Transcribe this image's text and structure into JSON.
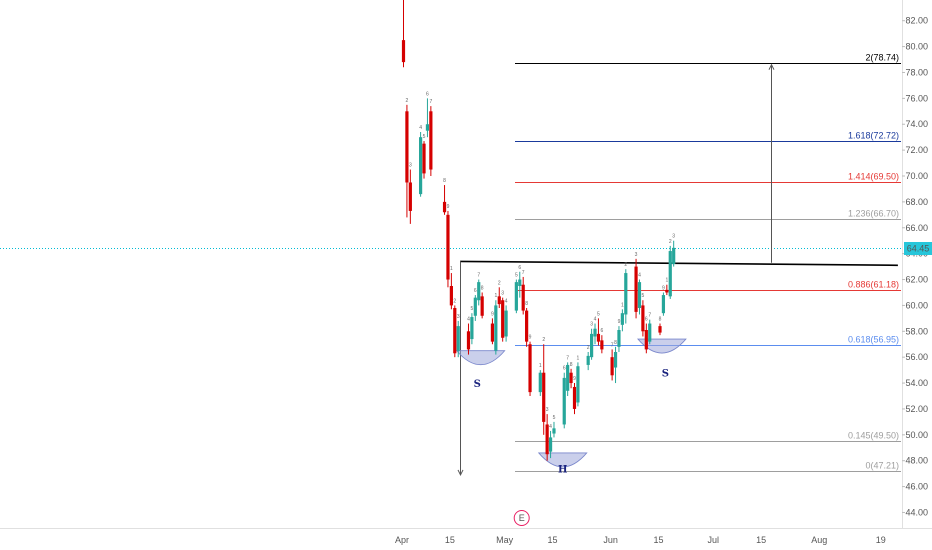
{
  "chart_data": {
    "type": "candlestick",
    "title": "",
    "ylim": [
      42.8,
      83.6
    ],
    "y_ticks": [
      "82.00",
      "80.00",
      "78.00",
      "76.00",
      "74.00",
      "72.00",
      "70.00",
      "68.00",
      "66.00",
      "64.00",
      "62.00",
      "60.00",
      "58.00",
      "56.00",
      "54.00",
      "52.00",
      "50.00",
      "48.00",
      "46.00",
      "44.00"
    ],
    "x_ticks": [
      "Apr",
      "15",
      "May",
      "15",
      "Jun",
      "15",
      "Jul",
      "15",
      "Aug",
      "19"
    ],
    "x_tick_dates": [
      "2020-04-01",
      "2020-04-15",
      "2020-05-01",
      "2020-05-15",
      "2020-06-01",
      "2020-06-15",
      "2020-07-01",
      "2020-07-15",
      "2020-08-01",
      "2020-08-19"
    ],
    "current_price": "64.45",
    "colors": {
      "up": "#26a69a",
      "down": "#d50000",
      "price_line": "#00bcd4",
      "price_badge": "#26c6da",
      "fib_blue": "#1a3a9c",
      "fib_red": "#e53935",
      "fib_gray": "#9e9e9e",
      "fib_blue_light": "#5b8def",
      "neckline": "#000000",
      "cup_fill": "#9fa8da"
    },
    "fib_levels": [
      {
        "label": "2(78.74)",
        "value": 78.74,
        "color": "#000000"
      },
      {
        "label": "1.618(72.72)",
        "value": 72.72,
        "color": "#1a3a9c"
      },
      {
        "label": "1.414(69.50)",
        "value": 69.5,
        "color": "#e53935"
      },
      {
        "label": "1.236(66.70)",
        "value": 66.7,
        "color": "#9e9e9e"
      },
      {
        "label": "0.886(61.18)",
        "value": 61.18,
        "color": "#e53935"
      },
      {
        "label": "0.618(56.95)",
        "value": 56.95,
        "color": "#5b8def"
      },
      {
        "label": "0.145(49.50)",
        "value": 49.5,
        "color": "#9e9e9e"
      },
      {
        "label": "0(47.21)",
        "value": 47.21,
        "color": "#9e9e9e"
      }
    ],
    "neckline": {
      "from": [
        "2020-04-18",
        63.4
      ],
      "to": [
        "2020-08-24",
        63.1
      ]
    },
    "arrows": [
      {
        "x": "2020-04-18",
        "from": 63.4,
        "to": 46.9
      },
      {
        "x": "2020-07-18",
        "from": 63.3,
        "to": 78.6
      }
    ],
    "pattern_labels": [
      {
        "text": "S",
        "date": "2020-04-23",
        "value": 54.0
      },
      {
        "text": "H",
        "date": "2020-05-18",
        "value": 47.4
      },
      {
        "text": "S",
        "date": "2020-06-17",
        "value": 54.8
      }
    ],
    "cups": [
      {
        "date": "2020-04-24",
        "value": 56.5
      },
      {
        "date": "2020-05-18",
        "value": 48.6
      },
      {
        "date": "2020-06-16",
        "value": 57.4
      }
    ],
    "event_marker": {
      "text": "E",
      "date": "2020-05-06"
    },
    "candles": [
      {
        "d": "2020-04-01",
        "o": 80.5,
        "h": 86,
        "l": 78.4,
        "c": 78.8
      },
      {
        "d": "2020-04-02",
        "o": 75.0,
        "h": 75.5,
        "l": 66.8,
        "c": 69.5
      },
      {
        "d": "2020-04-03",
        "o": 69.5,
        "h": 70.5,
        "l": 66.3,
        "c": 67.3
      },
      {
        "d": "2020-04-06",
        "o": 68.6,
        "h": 73.4,
        "l": 68.4,
        "c": 73.0
      },
      {
        "d": "2020-04-07",
        "o": 72.5,
        "h": 72.7,
        "l": 69.8,
        "c": 70.2
      },
      {
        "d": "2020-04-08",
        "o": 73.5,
        "h": 76.0,
        "l": 73.0,
        "c": 74.0
      },
      {
        "d": "2020-04-09",
        "o": 75.0,
        "h": 75.4,
        "l": 70.0,
        "c": 70.5
      },
      {
        "d": "2020-04-13",
        "o": 68.0,
        "h": 69.3,
        "l": 67.0,
        "c": 67.2
      },
      {
        "d": "2020-04-14",
        "o": 67.0,
        "h": 67.3,
        "l": 61.4,
        "c": 62.0
      },
      {
        "d": "2020-04-15",
        "o": 61.5,
        "h": 62.5,
        "l": 59.7,
        "c": 60.0
      },
      {
        "d": "2020-04-16",
        "o": 59.8,
        "h": 60.0,
        "l": 56.0,
        "c": 56.3
      },
      {
        "d": "2020-04-17",
        "o": 56.5,
        "h": 58.8,
        "l": 56.0,
        "c": 58.4
      },
      {
        "d": "2020-04-20",
        "o": 58.0,
        "h": 58.6,
        "l": 56.2,
        "c": 56.6
      },
      {
        "d": "2020-04-21",
        "o": 57.4,
        "h": 59.4,
        "l": 57.0,
        "c": 59.1
      },
      {
        "d": "2020-04-22",
        "o": 59.2,
        "h": 60.8,
        "l": 58.8,
        "c": 60.6
      },
      {
        "d": "2020-04-23",
        "o": 60.4,
        "h": 62.0,
        "l": 60.0,
        "c": 61.8
      },
      {
        "d": "2020-04-24",
        "o": 60.7,
        "h": 61.0,
        "l": 59.0,
        "c": 59.2
      },
      {
        "d": "2020-04-27",
        "o": 58.6,
        "h": 59.0,
        "l": 57.0,
        "c": 57.2
      },
      {
        "d": "2020-04-28",
        "o": 56.5,
        "h": 60.4,
        "l": 56.2,
        "c": 60.0
      },
      {
        "d": "2020-04-29",
        "o": 60.7,
        "h": 61.4,
        "l": 59.8,
        "c": 60.1
      },
      {
        "d": "2020-04-30",
        "o": 60.4,
        "h": 60.6,
        "l": 57.2,
        "c": 57.5
      },
      {
        "d": "2020-05-01",
        "o": 57.6,
        "h": 60.0,
        "l": 57.2,
        "c": 59.6
      },
      {
        "d": "2020-05-04",
        "o": 59.6,
        "h": 62.0,
        "l": 59.4,
        "c": 61.8
      },
      {
        "d": "2020-05-05",
        "o": 61.5,
        "h": 62.6,
        "l": 60.6,
        "c": 62.0
      },
      {
        "d": "2020-05-06",
        "o": 61.6,
        "h": 62.2,
        "l": 59.3,
        "c": 59.6
      },
      {
        "d": "2020-05-07",
        "o": 59.6,
        "h": 59.8,
        "l": 56.8,
        "c": 57.2
      },
      {
        "d": "2020-05-08",
        "o": 57.0,
        "h": 57.2,
        "l": 53.0,
        "c": 53.3
      },
      {
        "d": "2020-05-11",
        "o": 53.3,
        "h": 55.0,
        "l": 53.0,
        "c": 54.8
      },
      {
        "d": "2020-05-12",
        "o": 54.8,
        "h": 57.0,
        "l": 50.0,
        "c": 51.0
      },
      {
        "d": "2020-05-13",
        "o": 50.8,
        "h": 51.6,
        "l": 48.0,
        "c": 48.5
      },
      {
        "d": "2020-05-14",
        "o": 48.7,
        "h": 50.3,
        "l": 48.2,
        "c": 49.8
      },
      {
        "d": "2020-05-15",
        "o": 50.1,
        "h": 51.0,
        "l": 49.8,
        "c": 50.5
      },
      {
        "d": "2020-05-18",
        "o": 50.8,
        "h": 54.8,
        "l": 50.5,
        "c": 54.4
      },
      {
        "d": "2020-05-19",
        "o": 53.4,
        "h": 55.6,
        "l": 53.0,
        "c": 55.4
      },
      {
        "d": "2020-05-20",
        "o": 54.8,
        "h": 55.1,
        "l": 53.6,
        "c": 54.0
      },
      {
        "d": "2020-05-21",
        "o": 53.7,
        "h": 54.0,
        "l": 51.6,
        "c": 52.0
      },
      {
        "d": "2020-05-22",
        "o": 52.5,
        "h": 55.6,
        "l": 52.2,
        "c": 55.3
      },
      {
        "d": "2020-05-25",
        "o": 55.4,
        "h": 56.4,
        "l": 55.0,
        "c": 56.1
      },
      {
        "d": "2020-05-26",
        "o": 56.0,
        "h": 58.2,
        "l": 55.8,
        "c": 57.8
      },
      {
        "d": "2020-05-27",
        "o": 57.6,
        "h": 58.6,
        "l": 57.0,
        "c": 58.2
      },
      {
        "d": "2020-05-28",
        "o": 57.8,
        "h": 59.0,
        "l": 56.9,
        "c": 57.2
      },
      {
        "d": "2020-05-29",
        "o": 57.3,
        "h": 57.7,
        "l": 56.3,
        "c": 56.6
      },
      {
        "d": "2020-06-01",
        "o": 56.0,
        "h": 56.6,
        "l": 54.2,
        "c": 54.6
      },
      {
        "d": "2020-06-02",
        "o": 55.2,
        "h": 56.8,
        "l": 54.0,
        "c": 56.4
      },
      {
        "d": "2020-06-03",
        "o": 56.8,
        "h": 58.4,
        "l": 56.4,
        "c": 58.1
      },
      {
        "d": "2020-06-04",
        "o": 58.5,
        "h": 59.7,
        "l": 58.0,
        "c": 59.4
      },
      {
        "d": "2020-06-05",
        "o": 59.3,
        "h": 62.8,
        "l": 58.6,
        "c": 62.5
      },
      {
        "d": "2020-06-08",
        "o": 63.0,
        "h": 63.6,
        "l": 59.0,
        "c": 59.5
      },
      {
        "d": "2020-06-09",
        "o": 59.8,
        "h": 62.0,
        "l": 59.3,
        "c": 61.8
      },
      {
        "d": "2020-06-10",
        "o": 60.0,
        "h": 60.4,
        "l": 57.6,
        "c": 58.0
      },
      {
        "d": "2020-06-11",
        "o": 58.1,
        "h": 58.6,
        "l": 56.3,
        "c": 56.6
      },
      {
        "d": "2020-06-12",
        "o": 57.2,
        "h": 58.9,
        "l": 57.0,
        "c": 58.6
      },
      {
        "d": "2020-06-15",
        "o": 58.4,
        "h": 58.6,
        "l": 57.7,
        "c": 57.9
      },
      {
        "d": "2020-06-16",
        "o": 59.4,
        "h": 61.0,
        "l": 59.2,
        "c": 60.8
      },
      {
        "d": "2020-06-17",
        "o": 61.2,
        "h": 61.6,
        "l": 60.8,
        "c": 61.0
      },
      {
        "d": "2020-06-18",
        "o": 60.7,
        "h": 64.6,
        "l": 60.5,
        "c": 64.2
      },
      {
        "d": "2020-06-19",
        "o": 63.2,
        "h": 65.0,
        "l": 63.0,
        "c": 64.45
      }
    ]
  }
}
